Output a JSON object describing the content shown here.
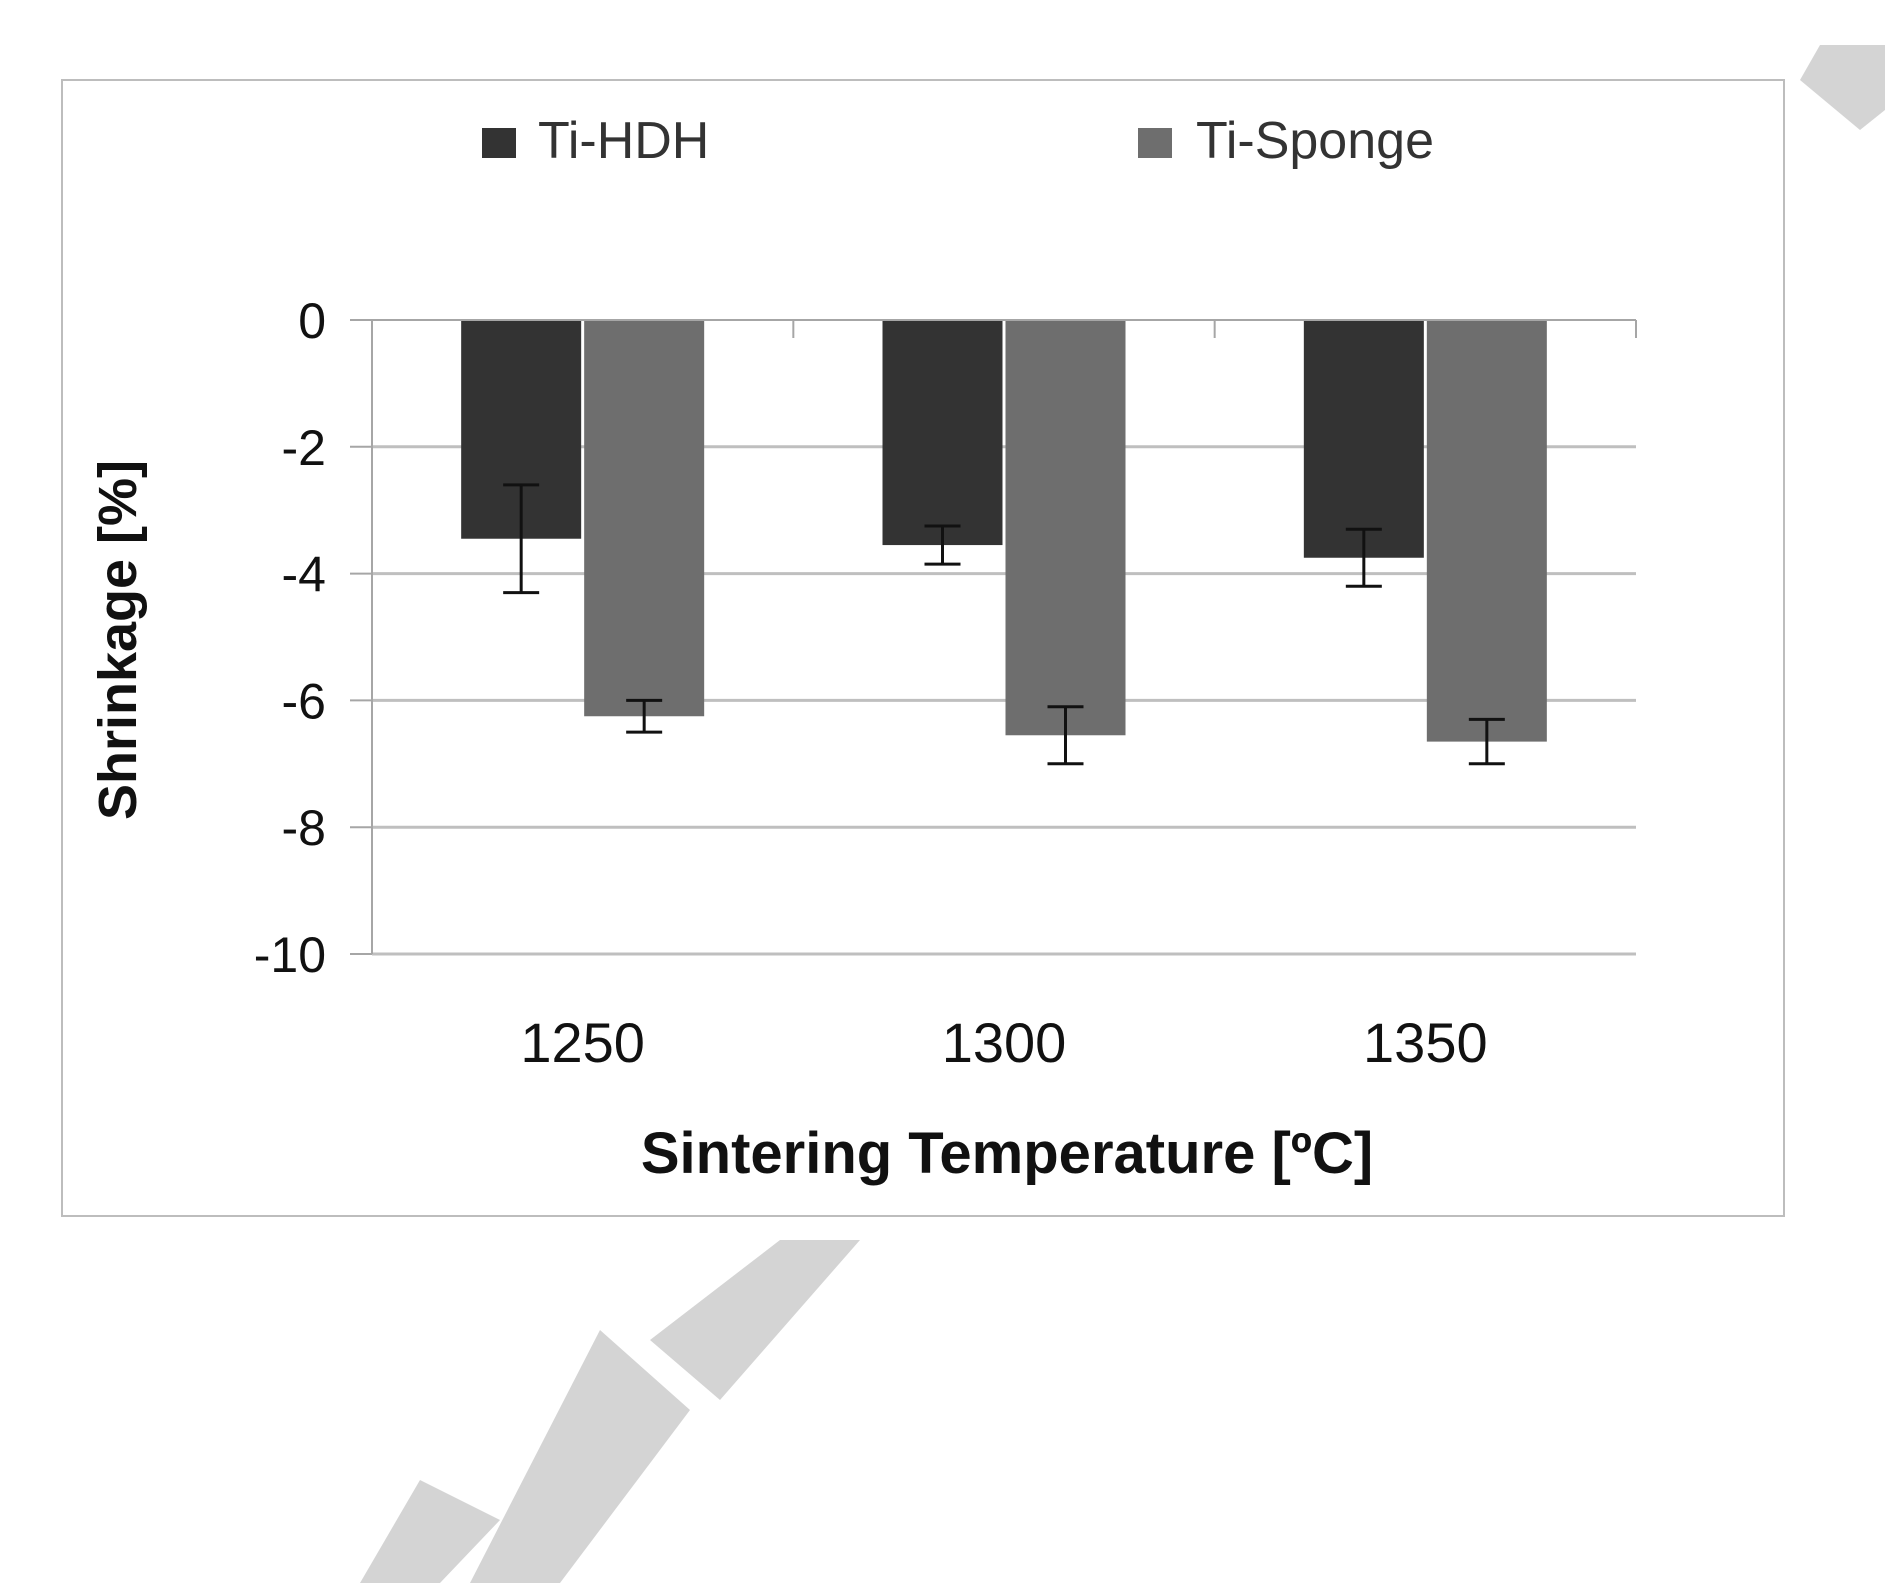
{
  "chart_data": {
    "type": "bar",
    "title": "",
    "xlabel": "Sintering Temperature [ºC]",
    "ylabel": "Shrinkage [%]",
    "categories": [
      "1250",
      "1300",
      "1350"
    ],
    "ylim": [
      -10,
      0
    ],
    "yticks": [
      0,
      -2,
      -4,
      -6,
      -8,
      -10
    ],
    "grid": true,
    "legend_position": "top",
    "series": [
      {
        "name": "Ti-HDH",
        "color": "#333333",
        "values": [
          -3.45,
          -3.55,
          -3.75
        ],
        "error": [
          0.85,
          0.3,
          0.45
        ]
      },
      {
        "name": "Ti-Sponge",
        "color": "#6e6e6e",
        "values": [
          -6.25,
          -6.55,
          -6.65
        ],
        "error": [
          0.25,
          0.45,
          0.35
        ]
      }
    ]
  },
  "colors": {
    "frame": "#bdbdbd",
    "grid": "#bfbfbf",
    "axis": "#a6a6a6",
    "error_bar": "#111111",
    "watermark": "#d4d4d4"
  }
}
